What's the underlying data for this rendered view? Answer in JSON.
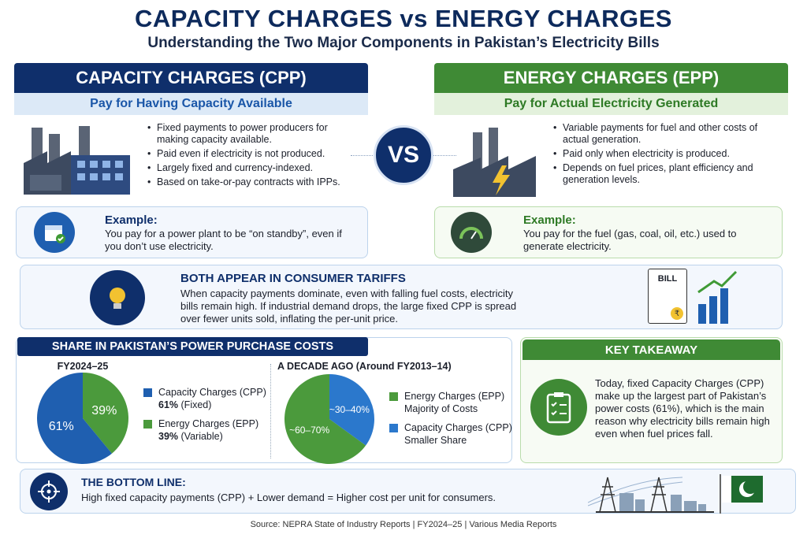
{
  "title": "CAPACITY CHARGES vs ENERGY CHARGES",
  "subtitle": "Understanding the Two Major Components in Pakistan’s Electricity Bills",
  "colors": {
    "navy": "#0f2f6b",
    "blue": "#1f5fb0",
    "green": "#3f8a35",
    "light_blue": "#dce9f7",
    "light_green": "#e3f1dc"
  },
  "capacity": {
    "header": "CAPACITY CHARGES (CPP)",
    "tagline": "Pay for Having Capacity Available",
    "icon": "factory-icon",
    "bullets": [
      "Fixed payments to power producers for making capacity available.",
      "Paid even if electricity is not produced.",
      "Largely fixed and currency-indexed.",
      "Based on take-or-pay contracts with IPPs."
    ],
    "example": {
      "icon": "calendar-check-icon",
      "label": "Example:",
      "text": "You pay for a power plant to be “on standby”, even if you don’t use electricity."
    }
  },
  "vs": "VS",
  "energy": {
    "header": "ENERGY CHARGES (EPP)",
    "tagline": "Pay for Actual Electricity Generated",
    "icon": "factory-lightning-icon",
    "bullets": [
      "Variable payments for fuel and other costs of actual generation.",
      "Paid only when electricity is produced.",
      "Depends on fuel prices, plant efficiency and generation levels."
    ],
    "example": {
      "icon": "fuel-gauge-icon",
      "label": "Example:",
      "text": "You pay for the fuel (gas, coal, oil, etc.) used to generate electricity."
    }
  },
  "tariffs": {
    "icon": "lightbulb-icon",
    "heading": "BOTH APPEAR IN CONSUMER TARIFFS",
    "text": "When capacity payments dominate, even with falling fuel costs, electricity bills remain high. If industrial demand drops, the large fixed CPP is spread over fewer units sold, inflating the per-unit price.",
    "bill_label": "BILL",
    "bill_symbol": "₹"
  },
  "share": {
    "header": "SHARE IN PAKISTAN’S POWER PURCHASE COSTS"
  },
  "chart_data": [
    {
      "type": "pie",
      "title": "FY2024–25",
      "slices": [
        {
          "label": "Capacity Charges (CPP)",
          "value": 61,
          "data_label": "61%",
          "legend_value": "61%",
          "legend_note": "(Fixed)",
          "color": "#1f5fb0"
        },
        {
          "label": "Energy Charges (EPP)",
          "value": 39,
          "data_label": "39%",
          "legend_value": "39%",
          "legend_note": "(Variable)",
          "color": "#4b9a3c"
        }
      ]
    },
    {
      "type": "pie",
      "title": "A DECADE AGO (Around FY2013–14)",
      "slices": [
        {
          "label": "Capacity Charges (CPP)",
          "value": 35,
          "data_label": "~30–40%",
          "legend_note": "Smaller Share",
          "color": "#2b78cc"
        },
        {
          "label": "Energy Charges (EPP)",
          "value": 65,
          "data_label": "~60–70%",
          "legend_note": "Majority of Costs",
          "color": "#4b9a3c"
        }
      ]
    }
  ],
  "takeaway": {
    "header": "KEY TAKEAWAY",
    "icon": "clipboard-checklist-icon",
    "text": "Today, fixed Capacity Charges (CPP) make up the largest part of Pakistan’s power costs (61%), which is the main reason why electricity bills remain high even when fuel prices fall."
  },
  "bottom": {
    "icon": "target-icon",
    "heading": "THE BOTTOM LINE:",
    "text": "High fixed capacity payments (CPP) + Lower demand = Higher cost per unit for consumers."
  },
  "source": "Source: NEPRA State of Industry Reports | FY2024–25 | Various Media Reports"
}
